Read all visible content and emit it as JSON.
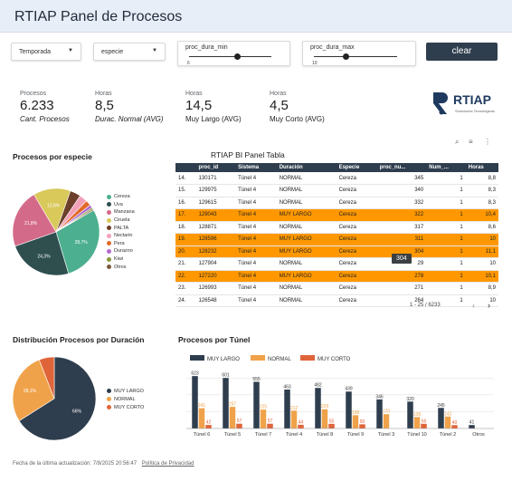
{
  "header": {
    "title": "RTIAP Panel de Procesos"
  },
  "filters": {
    "temporada": "Temporada",
    "especie": "especie",
    "dura_min": {
      "label": "proc_dura_min",
      "value": "6",
      "level": 0.58
    },
    "dura_max": {
      "label": "proc_dura_max",
      "value": "10",
      "level": 0.38
    },
    "clear": "clear"
  },
  "kpis": [
    {
      "caption": "Procesos",
      "value": "6.233",
      "sub": "Cant. Procesos"
    },
    {
      "caption": "Horas",
      "value": "8,5",
      "sub": "Durac. Normal (AVG)"
    },
    {
      "caption": "Horas",
      "value": "14,5",
      "sub": "Muy Largo (AVG)"
    },
    {
      "caption": "Horas",
      "value": "4,5",
      "sub": "Muy Corto (AVG)"
    }
  ],
  "logo": {
    "text": "RTIAP",
    "tagline": "Soluciones Tecnológicas",
    "color": "#1e3a5f"
  },
  "pie_especie": {
    "title": "Procesos por especie",
    "slices": [
      {
        "name": "Cereza",
        "value": 28.7,
        "label": "28,7%",
        "color": "#4caf90"
      },
      {
        "name": "Uva",
        "value": 24.3,
        "label": "24,3%",
        "color": "#2f4f4f"
      },
      {
        "name": "Manzana",
        "value": 21.8,
        "label": "21,8%",
        "color": "#d46a8a"
      },
      {
        "name": "Ciruela",
        "value": 13.9,
        "label": "13,9%",
        "color": "#d9c85a"
      },
      {
        "name": "PALTA",
        "value": 4.0,
        "label": "",
        "color": "#6b3f2a"
      },
      {
        "name": "Nectarin",
        "value": 3.0,
        "label": "",
        "color": "#f2a0b8"
      },
      {
        "name": "Pera",
        "value": 2.0,
        "label": "",
        "color": "#e06a2a"
      },
      {
        "name": "Durazno",
        "value": 1.2,
        "label": "",
        "color": "#b06ad0"
      },
      {
        "name": "Kiwi",
        "value": 0.6,
        "label": "",
        "color": "#8a9a3a"
      },
      {
        "name": "Otros",
        "value": 0.5,
        "label": "",
        "color": "#7a5a3a"
      }
    ]
  },
  "table": {
    "title": "RTIAP BI Panel Tabla",
    "columns": [
      "",
      "proc_id",
      "Sistema",
      "Duración",
      "Especie",
      "proc_nu...",
      "Num_...",
      "Horas"
    ],
    "rows": [
      {
        "n": "14.",
        "id": "130171",
        "sis": "Túnel 4",
        "dur": "NORMAL",
        "esp": "Cereza",
        "nu": "345",
        "num": "1",
        "h": "8,8",
        "hl": false
      },
      {
        "n": "15.",
        "id": "129975",
        "sis": "Túnel 4",
        "dur": "NORMAL",
        "esp": "Cereza",
        "nu": "340",
        "num": "1",
        "h": "8,3",
        "hl": false
      },
      {
        "n": "16.",
        "id": "129615",
        "sis": "Túnel 4",
        "dur": "NORMAL",
        "esp": "Cereza",
        "nu": "332",
        "num": "1",
        "h": "8,3",
        "hl": false
      },
      {
        "n": "17.",
        "id": "129043",
        "sis": "Túnel 4",
        "dur": "MUY LARGO",
        "esp": "Cereza",
        "nu": "322",
        "num": "1",
        "h": "10,4",
        "hl": true
      },
      {
        "n": "18.",
        "id": "128871",
        "sis": "Túnel 4",
        "dur": "NORMAL",
        "esp": "Cereza",
        "nu": "317",
        "num": "1",
        "h": "8,6",
        "hl": false
      },
      {
        "n": "19.",
        "id": "128596",
        "sis": "Túnel 4",
        "dur": "MUY LARGO",
        "esp": "Cereza",
        "nu": "311",
        "num": "1",
        "h": "10",
        "hl": true
      },
      {
        "n": "20.",
        "id": "128232",
        "sis": "Túnel 4",
        "dur": "MUY LARGO",
        "esp": "Cereza",
        "nu": "304",
        "num": "1",
        "h": "11,1",
        "hl": true
      },
      {
        "n": "21.",
        "id": "127904",
        "sis": "Túnel 4",
        "dur": "NORMAL",
        "esp": "Cereza",
        "nu": "29",
        "num": "1",
        "h": "10",
        "hl": false
      },
      {
        "n": "22.",
        "id": "127220",
        "sis": "Túnel 4",
        "dur": "MUY LARGO",
        "esp": "Cereza",
        "nu": "278",
        "num": "1",
        "h": "10,1",
        "hl": true
      },
      {
        "n": "23.",
        "id": "126993",
        "sis": "Túnel 4",
        "dur": "NORMAL",
        "esp": "Cereza",
        "nu": "271",
        "num": "1",
        "h": "8,9",
        "hl": false
      },
      {
        "n": "24.",
        "id": "126548",
        "sis": "Túnel 4",
        "dur": "NORMAL",
        "esp": "Cereza",
        "nu": "264",
        "num": "1",
        "h": "10",
        "hl": false
      }
    ],
    "pagination": "1 - 25 / 6233",
    "tooltip": "304",
    "highlight_color": "#ff9800",
    "header_color": "#2f3e4e"
  },
  "pie_duracion": {
    "title": "Distribución Procesos por Duración",
    "slices": [
      {
        "name": "MUY LARGO",
        "value": 66,
        "label": "66%",
        "color": "#2f3e4e"
      },
      {
        "name": "NORMAL",
        "value": 28.1,
        "label": "28,1%",
        "color": "#f0a24a"
      },
      {
        "name": "MUY CORTO",
        "value": 5.9,
        "label": "",
        "color": "#e0643a"
      }
    ]
  },
  "chart_data": {
    "type": "bar",
    "title": "Procesos por Túnel",
    "categories": [
      "Túnel 6",
      "Túnel 5",
      "Túnel 7",
      "Túnel 4",
      "Túnel 8",
      "Túnel 9",
      "Túnel 3",
      "Túnel 10",
      "Túnel 2",
      "Otros"
    ],
    "series": [
      {
        "name": "MUY LARGO",
        "color": "#2f3e4e",
        "values": [
          623,
          601,
          555,
          463,
          482,
          439,
          346,
          320,
          245,
          41
        ],
        "labels": [
          "623",
          "601",
          "555",
          "463",
          "482",
          "439",
          "346",
          "320",
          "245",
          "41"
        ]
      },
      {
        "name": "NORMAL",
        "color": "#f0a24a",
        "values": [
          241,
          257,
          225,
          212,
          229,
          158,
          170,
          136,
          142,
          0
        ],
        "labels": [
          "241",
          "257",
          "225",
          "212",
          "229",
          "158",
          "170",
          "136",
          "142",
          ""
        ]
      },
      {
        "name": "MUY CORTO",
        "color": "#e0643a",
        "values": [
          42,
          57,
          57,
          44,
          55,
          50,
          0,
          56,
          40,
          0
        ],
        "labels": [
          "42",
          "57",
          "57",
          "44",
          "55",
          "50",
          "",
          "56",
          "40",
          ""
        ]
      }
    ],
    "ylim": [
      0,
      700
    ],
    "legend": "top-left",
    "grid": true
  },
  "footer": {
    "updated": "Fecha de la última actualización: 7/8/2025 20:56:47",
    "privacy": "Política de Privacidad"
  }
}
